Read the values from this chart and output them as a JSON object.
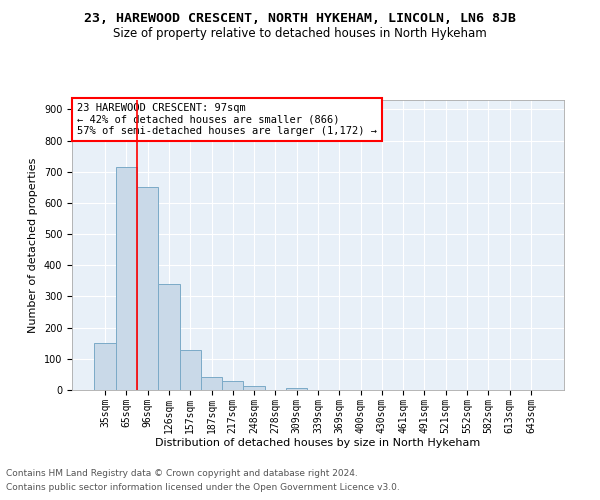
{
  "title1": "23, HAREWOOD CRESCENT, NORTH HYKEHAM, LINCOLN, LN6 8JB",
  "title2": "Size of property relative to detached houses in North Hykeham",
  "xlabel": "Distribution of detached houses by size in North Hykeham",
  "ylabel": "Number of detached properties",
  "footnote1": "Contains HM Land Registry data © Crown copyright and database right 2024.",
  "footnote2": "Contains public sector information licensed under the Open Government Licence v3.0.",
  "bar_categories": [
    "35sqm",
    "65sqm",
    "96sqm",
    "126sqm",
    "157sqm",
    "187sqm",
    "217sqm",
    "248sqm",
    "278sqm",
    "309sqm",
    "339sqm",
    "369sqm",
    "400sqm",
    "430sqm",
    "461sqm",
    "491sqm",
    "521sqm",
    "552sqm",
    "582sqm",
    "613sqm",
    "643sqm"
  ],
  "bar_values": [
    150,
    715,
    650,
    340,
    128,
    42,
    30,
    12,
    0,
    8,
    0,
    0,
    0,
    0,
    0,
    0,
    0,
    0,
    0,
    0,
    0
  ],
  "bar_color": "#c9d9e8",
  "bar_edge_color": "#7baac7",
  "property_line_color": "red",
  "annotation_text": "23 HAREWOOD CRESCENT: 97sqm\n← 42% of detached houses are smaller (866)\n57% of semi-detached houses are larger (1,172) →",
  "annotation_box_color": "white",
  "annotation_box_edge_color": "red",
  "ylim": [
    0,
    930
  ],
  "yticks": [
    0,
    100,
    200,
    300,
    400,
    500,
    600,
    700,
    800,
    900
  ],
  "plot_background": "#e8f0f8",
  "grid_color": "white",
  "title1_fontsize": 9.5,
  "title2_fontsize": 8.5,
  "xlabel_fontsize": 8,
  "ylabel_fontsize": 8,
  "tick_fontsize": 7,
  "annotation_fontsize": 7.5,
  "footnote_fontsize": 6.5
}
